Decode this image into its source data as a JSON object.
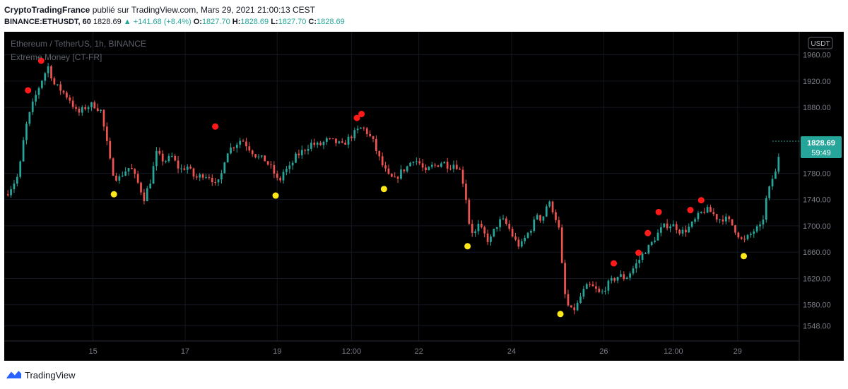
{
  "header": {
    "author": "CryptoTradingFrance",
    "published_text": "publié sur TradingView.com, Mars 29, 2021 21:00:13 CEST",
    "symbol": "BINANCE:ETHUSDT, 60",
    "last": "1828.69",
    "change": "▲ +141.68 (+8.4%)",
    "o_label": "O:",
    "o_value": "1827.70",
    "h_label": "H:",
    "h_value": "1828.69",
    "l_label": "L:",
    "l_value": "1827.70",
    "c_label": "C:",
    "c_value": "1828.69"
  },
  "chart": {
    "title": "Ethereum / TetherUS, 1h, BINANCE",
    "indicator": "Extreme Money [CT-FR]",
    "currency": "USDT",
    "price_badge": "1828.69",
    "countdown": "59:49"
  },
  "footer": {
    "brand": "TradingView"
  },
  "colors": {
    "up": "#26a69a",
    "down": "#ef5350",
    "dot_top": "#ff1a1a",
    "dot_bottom": "#ffe81a",
    "background": "#000000"
  },
  "chart_data": {
    "type": "candlestick",
    "title": "Ethereum / TetherUS, 1h, BINANCE",
    "x_ticks": [
      "15",
      "17",
      "19",
      "12:00",
      "22",
      "24",
      "26",
      "12:00",
      "29"
    ],
    "y_ticks": [
      "1960.00",
      "1920.00",
      "1880.00",
      "1780.00",
      "1740.00",
      "1700.00",
      "1660.00",
      "1620.00",
      "1580.00",
      "1548.00"
    ],
    "ylim": [
      1525,
      1995
    ],
    "xlim": [
      0,
      100
    ],
    "x_tick_pos": [
      11.2,
      23.1,
      35.0,
      44.6,
      53.3,
      65.3,
      77.2,
      86.2,
      94.5
    ],
    "price_path": [
      [
        0,
        1748
      ],
      [
        0.8,
        1762
      ],
      [
        1.6,
        1778
      ],
      [
        2.4,
        1845
      ],
      [
        3.2,
        1878
      ],
      [
        4.0,
        1905
      ],
      [
        4.8,
        1928
      ],
      [
        5.4,
        1942
      ],
      [
        6.2,
        1915
      ],
      [
        7.2,
        1905
      ],
      [
        8.2,
        1892
      ],
      [
        9.2,
        1870
      ],
      [
        10.2,
        1880
      ],
      [
        11.2,
        1885
      ],
      [
        12.2,
        1875
      ],
      [
        13.0,
        1825
      ],
      [
        13.6,
        1785
      ],
      [
        14.4,
        1770
      ],
      [
        15.2,
        1782
      ],
      [
        16.0,
        1790
      ],
      [
        17.0,
        1765
      ],
      [
        17.8,
        1742
      ],
      [
        18.6,
        1768
      ],
      [
        19.4,
        1810
      ],
      [
        20.4,
        1798
      ],
      [
        21.4,
        1805
      ],
      [
        22.4,
        1785
      ],
      [
        23.4,
        1790
      ],
      [
        24.4,
        1772
      ],
      [
        25.4,
        1778
      ],
      [
        26.4,
        1775
      ],
      [
        27.0,
        1762
      ],
      [
        27.6,
        1768
      ],
      [
        28.4,
        1812
      ],
      [
        29.4,
        1822
      ],
      [
        30.4,
        1832
      ],
      [
        31.4,
        1818
      ],
      [
        32.4,
        1805
      ],
      [
        33.4,
        1800
      ],
      [
        34.4,
        1785
      ],
      [
        35.2,
        1765
      ],
      [
        35.8,
        1782
      ],
      [
        36.6,
        1788
      ],
      [
        37.4,
        1805
      ],
      [
        38.4,
        1815
      ],
      [
        39.4,
        1825
      ],
      [
        40.4,
        1822
      ],
      [
        41.4,
        1830
      ],
      [
        42.4,
        1828
      ],
      [
        43.4,
        1822
      ],
      [
        44.4,
        1835
      ],
      [
        45.4,
        1845
      ],
      [
        46.0,
        1850
      ],
      [
        46.6,
        1842
      ],
      [
        47.4,
        1828
      ],
      [
        48.0,
        1808
      ],
      [
        48.6,
        1792
      ],
      [
        49.4,
        1775
      ],
      [
        50.2,
        1770
      ],
      [
        51.0,
        1782
      ],
      [
        51.8,
        1790
      ],
      [
        52.6,
        1802
      ],
      [
        53.4,
        1795
      ],
      [
        54.2,
        1780
      ],
      [
        54.8,
        1790
      ],
      [
        55.6,
        1792
      ],
      [
        56.4,
        1798
      ],
      [
        57.2,
        1790
      ],
      [
        58.0,
        1795
      ],
      [
        58.8,
        1780
      ],
      [
        59.4,
        1742
      ],
      [
        59.8,
        1705
      ],
      [
        60.4,
        1685
      ],
      [
        61.0,
        1700
      ],
      [
        61.6,
        1690
      ],
      [
        62.4,
        1675
      ],
      [
        63.2,
        1698
      ],
      [
        64.0,
        1710
      ],
      [
        64.8,
        1700
      ],
      [
        65.6,
        1680
      ],
      [
        66.4,
        1668
      ],
      [
        67.2,
        1685
      ],
      [
        68.0,
        1700
      ],
      [
        68.6,
        1718
      ],
      [
        69.2,
        1708
      ],
      [
        70.0,
        1738
      ],
      [
        70.8,
        1720
      ],
      [
        71.4,
        1695
      ],
      [
        71.8,
        1640
      ],
      [
        72.2,
        1595
      ],
      [
        72.8,
        1570
      ],
      [
        73.6,
        1575
      ],
      [
        74.4,
        1598
      ],
      [
        75.2,
        1610
      ],
      [
        76.0,
        1605
      ],
      [
        76.8,
        1595
      ],
      [
        77.6,
        1610
      ],
      [
        78.4,
        1618
      ],
      [
        79.2,
        1625
      ],
      [
        80.0,
        1620
      ],
      [
        80.8,
        1632
      ],
      [
        81.6,
        1645
      ],
      [
        82.4,
        1660
      ],
      [
        83.2,
        1670
      ],
      [
        84.0,
        1685
      ],
      [
        84.8,
        1698
      ],
      [
        85.6,
        1702
      ],
      [
        86.4,
        1700
      ],
      [
        87.2,
        1690
      ],
      [
        88.0,
        1695
      ],
      [
        88.8,
        1705
      ],
      [
        89.6,
        1718
      ],
      [
        90.4,
        1725
      ],
      [
        91.2,
        1720
      ],
      [
        92.0,
        1710
      ],
      [
        92.8,
        1712
      ],
      [
        93.6,
        1705
      ],
      [
        94.4,
        1690
      ],
      [
        95.2,
        1675
      ],
      [
        96.0,
        1685
      ],
      [
        96.8,
        1695
      ],
      [
        97.6,
        1698
      ],
      [
        98.2,
        1740
      ],
      [
        99.0,
        1772
      ],
      [
        99.6,
        1785
      ],
      [
        100,
        1828.69
      ]
    ],
    "red_dots": [
      {
        "x": 2.8,
        "y": 1906
      },
      {
        "x": 4.5,
        "y": 1951
      },
      {
        "x": 27.0,
        "y": 1851
      },
      {
        "x": 45.3,
        "y": 1864
      },
      {
        "x": 45.9,
        "y": 1870
      },
      {
        "x": 78.5,
        "y": 1643
      },
      {
        "x": 81.7,
        "y": 1659
      },
      {
        "x": 82.9,
        "y": 1689
      },
      {
        "x": 84.3,
        "y": 1721
      },
      {
        "x": 88.4,
        "y": 1724
      },
      {
        "x": 89.8,
        "y": 1739
      }
    ],
    "yellow_dots": [
      {
        "x": 13.9,
        "y": 1748
      },
      {
        "x": 34.8,
        "y": 1746
      },
      {
        "x": 48.8,
        "y": 1756
      },
      {
        "x": 59.6,
        "y": 1669
      },
      {
        "x": 71.6,
        "y": 1566
      },
      {
        "x": 95.3,
        "y": 1654
      }
    ]
  }
}
